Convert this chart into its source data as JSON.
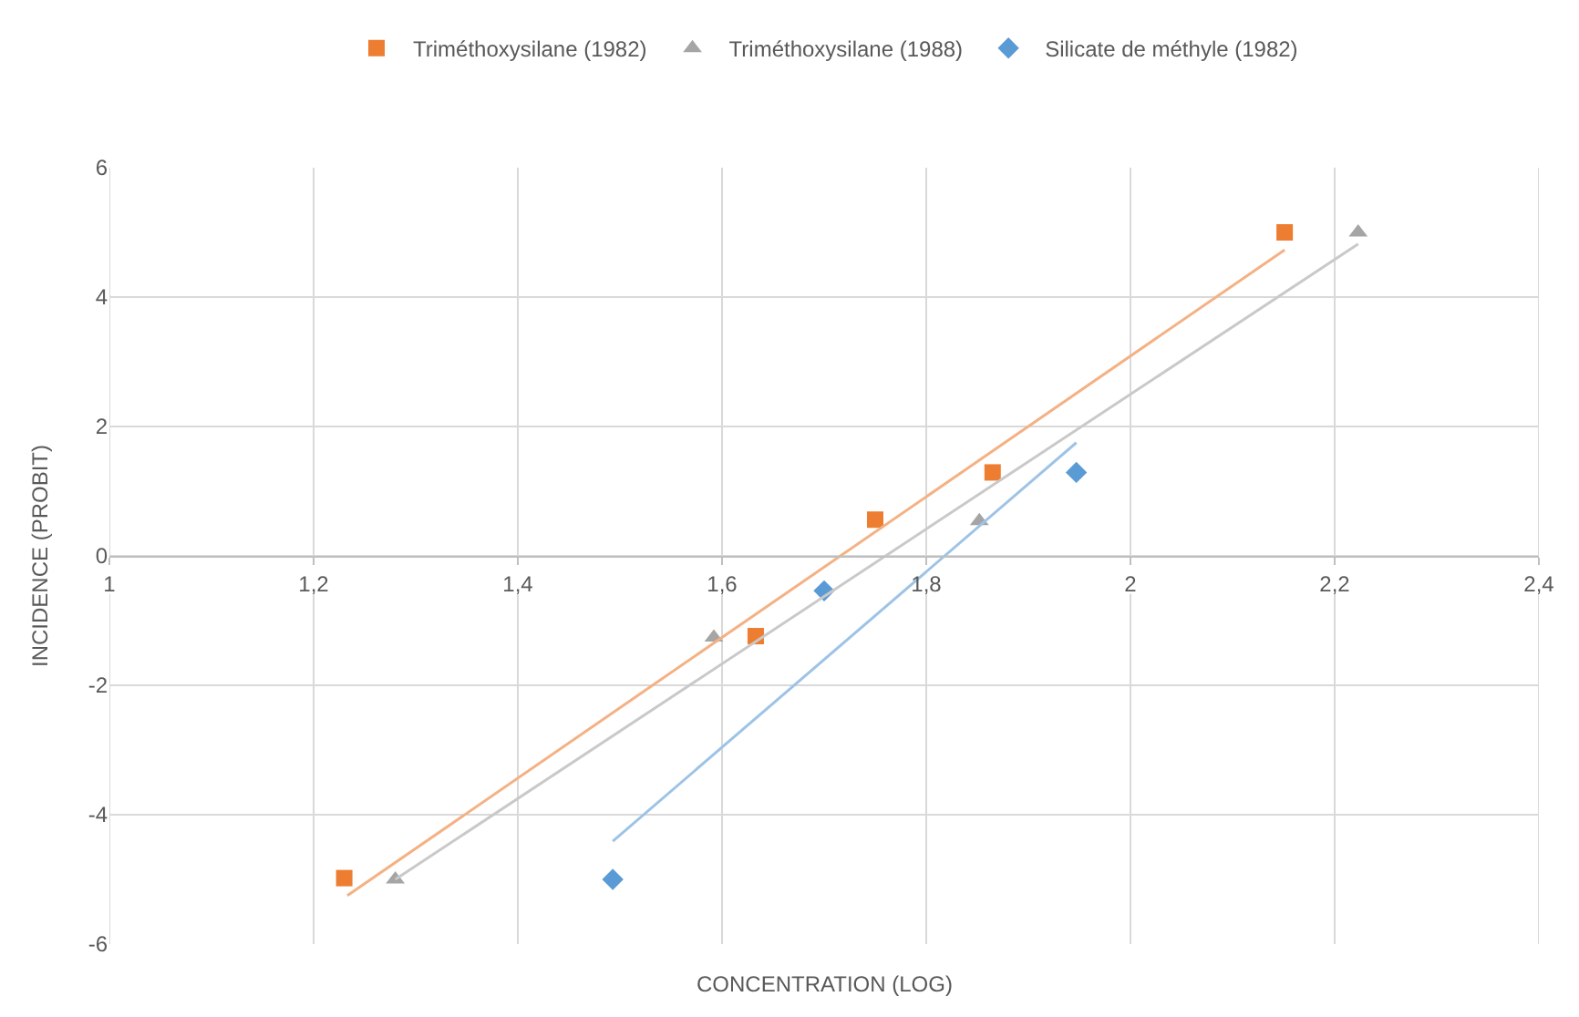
{
  "chart_data": {
    "type": "scatter",
    "xlabel": "CONCENTRATION (LOG)",
    "ylabel": "INCIDENCE (PROBIT)",
    "xlim": [
      1,
      2.4
    ],
    "xticks": [
      1,
      {
        "value": 1.2,
        "label": "1,2"
      },
      {
        "value": 1.4,
        "label": "1,4"
      },
      {
        "value": 1.6,
        "label": "1,6"
      },
      {
        "value": 1.8,
        "label": "1,8"
      },
      2,
      {
        "value": 2.2,
        "label": "2,2"
      },
      {
        "value": 2.4,
        "label": "2,4"
      }
    ],
    "ylim": [
      -6,
      6
    ],
    "yticks": [
      -6,
      -4,
      -2,
      0,
      2,
      4,
      6
    ],
    "grid": true,
    "legend": "top",
    "series": [
      {
        "name": "Triméthoxysilane (1982)",
        "color": "#ed7d31",
        "marker": "square",
        "x": [
          1.23,
          1.633,
          1.75,
          1.865,
          2.151
        ],
        "values": [
          -4.98,
          -1.24,
          0.56,
          1.29,
          5.0
        ]
      },
      {
        "name": "Triméthoxysilane (1988)",
        "color": "#a5a5a5",
        "marker": "triangle",
        "x": [
          1.28,
          1.592,
          1.852,
          2.223
        ],
        "values": [
          -5.0,
          -1.26,
          0.54,
          5.0
        ]
      },
      {
        "name": "Silicate de méthyle (1982)",
        "color": "#5b9bd5",
        "marker": "diamond",
        "x": [
          1.493,
          1.7,
          1.947
        ],
        "values": [
          -5.0,
          -0.54,
          1.29
        ]
      },
      {
        "type": "line",
        "color": "#f4b183",
        "marker": "none",
        "x": [
          1.233,
          2.151
        ],
        "values": [
          -5.25,
          4.73
        ]
      },
      {
        "type": "line",
        "color": "#c9c9c9",
        "marker": "none",
        "x": [
          1.28,
          2.223
        ],
        "values": [
          -5.0,
          4.82
        ]
      },
      {
        "type": "line",
        "color": "#9dc3e6",
        "marker": "none",
        "x": [
          1.493,
          1.947
        ],
        "values": [
          -4.41,
          1.75
        ]
      }
    ]
  }
}
